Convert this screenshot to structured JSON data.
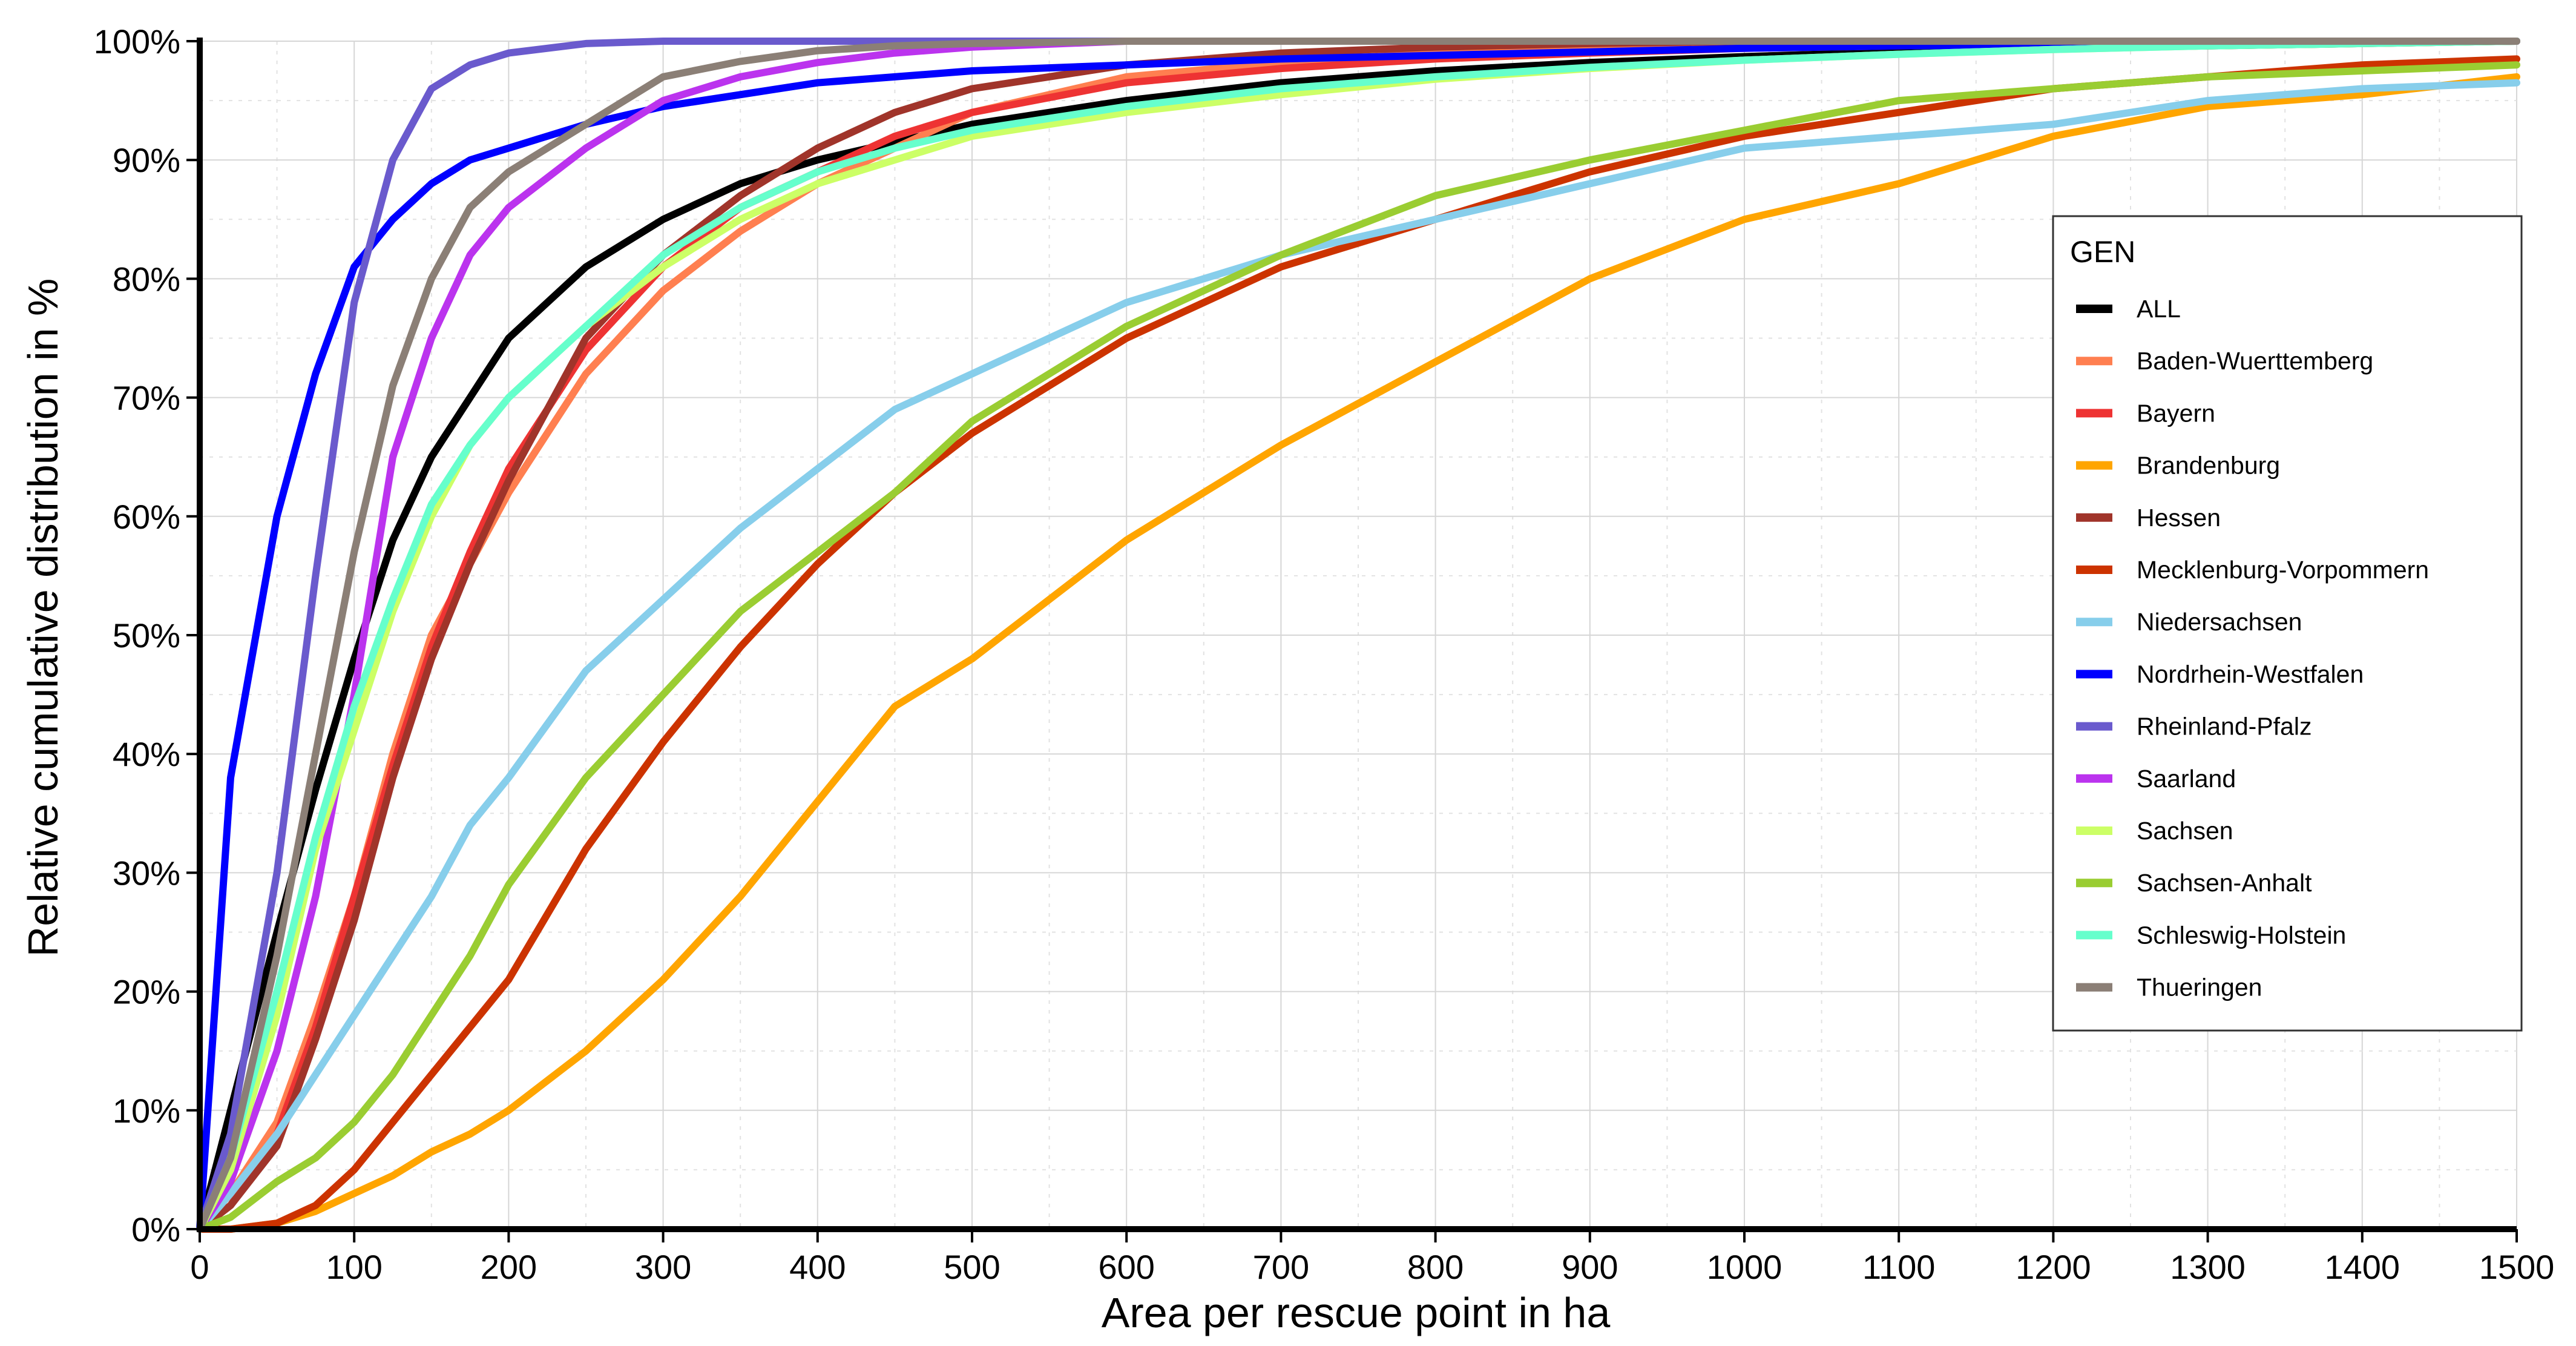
{
  "chart_data": {
    "type": "line",
    "xlabel": "Area per rescue point in ha",
    "ylabel": "Relative cumulative distribution in %",
    "xlim": [
      0,
      1500
    ],
    "ylim": [
      0,
      100
    ],
    "x_ticks": [
      "0",
      "100",
      "200",
      "300",
      "400",
      "500",
      "600",
      "700",
      "800",
      "900",
      "1000",
      "1100",
      "1200",
      "1300",
      "1400",
      "1500"
    ],
    "y_ticks": [
      "0%",
      "10%",
      "20%",
      "30%",
      "40%",
      "50%",
      "60%",
      "70%",
      "80%",
      "90%",
      "100%"
    ],
    "grid": true,
    "legend": {
      "title": "GEN",
      "position": "right"
    },
    "x": [
      0,
      20,
      50,
      75,
      100,
      125,
      150,
      175,
      200,
      250,
      300,
      350,
      400,
      450,
      500,
      600,
      700,
      800,
      900,
      1000,
      1100,
      1200,
      1300,
      1400,
      1500
    ],
    "series": [
      {
        "name": "ALL",
        "color": "#000000",
        "values": [
          0,
          10,
          25,
          37,
          48,
          58,
          65,
          70,
          75,
          81,
          85,
          88,
          90,
          91.5,
          93,
          95,
          96.5,
          97.5,
          98.2,
          98.7,
          99.1,
          99.4,
          99.6,
          99.8,
          100
        ]
      },
      {
        "name": "Baden-Wuerttemberg",
        "color": "#ff7f50",
        "values": [
          0,
          3,
          9,
          18,
          28,
          40,
          50,
          56,
          62,
          72,
          79,
          84,
          88,
          91,
          94,
          97,
          98.2,
          99,
          99.4,
          99.7,
          99.8,
          99.9,
          100,
          100,
          100
        ]
      },
      {
        "name": "Bayern",
        "color": "#ee3333",
        "values": [
          0,
          2,
          8,
          17,
          28,
          39,
          49,
          57,
          64,
          74,
          81,
          86,
          89,
          92,
          94,
          96.5,
          97.7,
          98.5,
          99,
          99.4,
          99.6,
          99.8,
          99.9,
          100,
          100
        ]
      },
      {
        "name": "Brandenburg",
        "color": "#ffa500",
        "values": [
          0,
          0,
          0.5,
          1.5,
          3,
          4.5,
          6.5,
          8,
          10,
          15,
          21,
          28,
          36,
          44,
          48,
          58,
          66,
          73,
          80,
          85,
          88,
          92,
          94.5,
          95.5,
          97
        ]
      },
      {
        "name": "Hessen",
        "color": "#a0342a",
        "values": [
          0,
          2,
          7,
          16,
          26,
          38,
          48,
          56,
          63,
          75,
          82,
          87,
          91,
          94,
          96,
          98,
          99,
          99.5,
          99.8,
          100,
          100,
          100,
          100,
          100,
          100
        ]
      },
      {
        "name": "Mecklenburg-Vorpommern",
        "color": "#cc3300",
        "values": [
          0,
          0,
          0.5,
          2,
          5,
          9,
          13,
          17,
          21,
          32,
          41,
          49,
          56,
          62,
          67,
          75,
          81,
          85,
          89,
          92,
          94,
          96,
          97,
          98,
          98.5
        ]
      },
      {
        "name": "Niedersachsen",
        "color": "#87ceeb",
        "values": [
          0,
          3,
          8,
          13,
          18,
          23,
          28,
          34,
          38,
          47,
          53,
          59,
          64,
          69,
          72,
          78,
          82,
          85,
          88,
          91,
          92,
          93,
          95,
          96,
          96.5
        ]
      },
      {
        "name": "Nordrhein-Westfalen",
        "color": "#0000ff",
        "values": [
          0,
          38,
          60,
          72,
          81,
          85,
          88,
          90,
          91,
          93,
          94.5,
          95.5,
          96.5,
          97,
          97.5,
          98,
          98.5,
          98.8,
          99.1,
          99.4,
          99.6,
          99.7,
          99.8,
          99.9,
          100
        ]
      },
      {
        "name": "Rheinland-Pfalz",
        "color": "#6a5acd",
        "values": [
          0,
          8,
          30,
          55,
          78,
          90,
          96,
          98,
          99,
          99.8,
          100,
          100,
          100,
          100,
          100,
          100,
          100,
          100,
          100,
          100,
          100,
          100,
          100,
          100,
          100
        ]
      },
      {
        "name": "Saarland",
        "color": "#bb33ee",
        "values": [
          0,
          4,
          15,
          28,
          45,
          65,
          75,
          82,
          86,
          91,
          95,
          97,
          98.2,
          99,
          99.5,
          100,
          100,
          100,
          100,
          100,
          100,
          100,
          100,
          100,
          100
        ]
      },
      {
        "name": "Sachsen",
        "color": "#ccff66",
        "values": [
          0,
          5,
          18,
          32,
          42,
          52,
          60,
          66,
          70,
          76,
          81,
          85,
          88,
          90,
          92,
          94,
          95.5,
          96.8,
          97.7,
          98.4,
          98.9,
          99.3,
          99.6,
          99.8,
          100
        ]
      },
      {
        "name": "Sachsen-Anhalt",
        "color": "#9acd32",
        "values": [
          0,
          1,
          4,
          6,
          9,
          13,
          18,
          23,
          29,
          38,
          45,
          52,
          57,
          62,
          68,
          76,
          82,
          87,
          90,
          92.5,
          95,
          96,
          97,
          97.5,
          98
        ]
      },
      {
        "name": "Schleswig-Holstein",
        "color": "#66ffcc",
        "values": [
          0,
          6,
          20,
          33,
          44,
          53,
          61,
          66,
          70,
          76,
          82,
          86,
          89,
          91,
          92.5,
          94.5,
          96,
          97,
          97.8,
          98.4,
          98.9,
          99.3,
          99.6,
          99.8,
          100
        ]
      },
      {
        "name": "Thueringen",
        "color": "#8b7f76",
        "values": [
          0,
          6,
          23,
          40,
          57,
          71,
          80,
          86,
          89,
          93,
          97,
          98.3,
          99.2,
          99.6,
          99.8,
          100,
          100,
          100,
          100,
          100,
          100,
          100,
          100,
          100,
          100
        ]
      }
    ]
  }
}
